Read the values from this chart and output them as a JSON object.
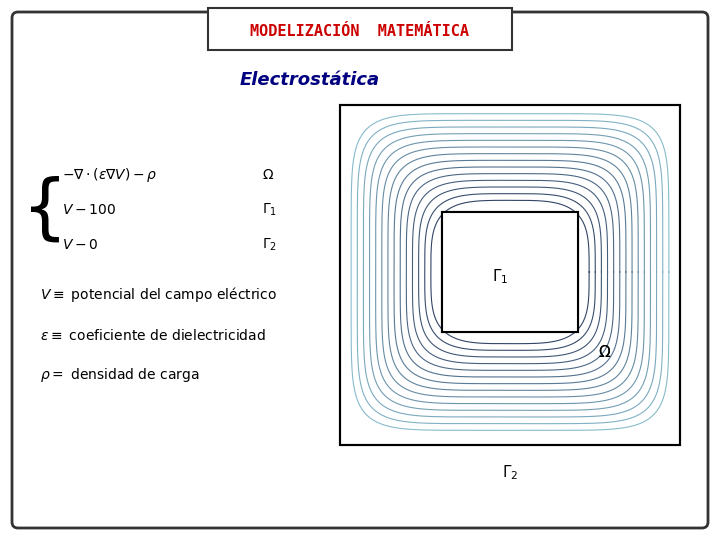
{
  "title": "MODELIZACIÓN  MATEMÁTICA",
  "subtitle": "Electrostática",
  "title_color": "#cc0000",
  "subtitle_color": "#000080",
  "bg_color": "#ffffff",
  "outer_border_color": "#333333",
  "inner_box_color": "#333333",
  "contour_color_dark": "#333366",
  "contour_color_light": "#66aacc",
  "eq_lines": [
    "\\{\\quad -\\nabla\\cdot(\\varepsilon\\nabla V) - \\rho \\qquad \\Omega",
    "\\quad\\quad V - 100 \\qquad\\qquad\\quad \\Gamma_1",
    "\\quad\\quad V - 0  \\qquad\\qquad\\quad \\Gamma_2"
  ],
  "desc_lines": [
    "$V \\equiv$ potencial del campo eléctrico",
    "$\\varepsilon \\equiv$ coeficiente de dielectricidad",
    "$\\rho =$ densidad de carga"
  ]
}
